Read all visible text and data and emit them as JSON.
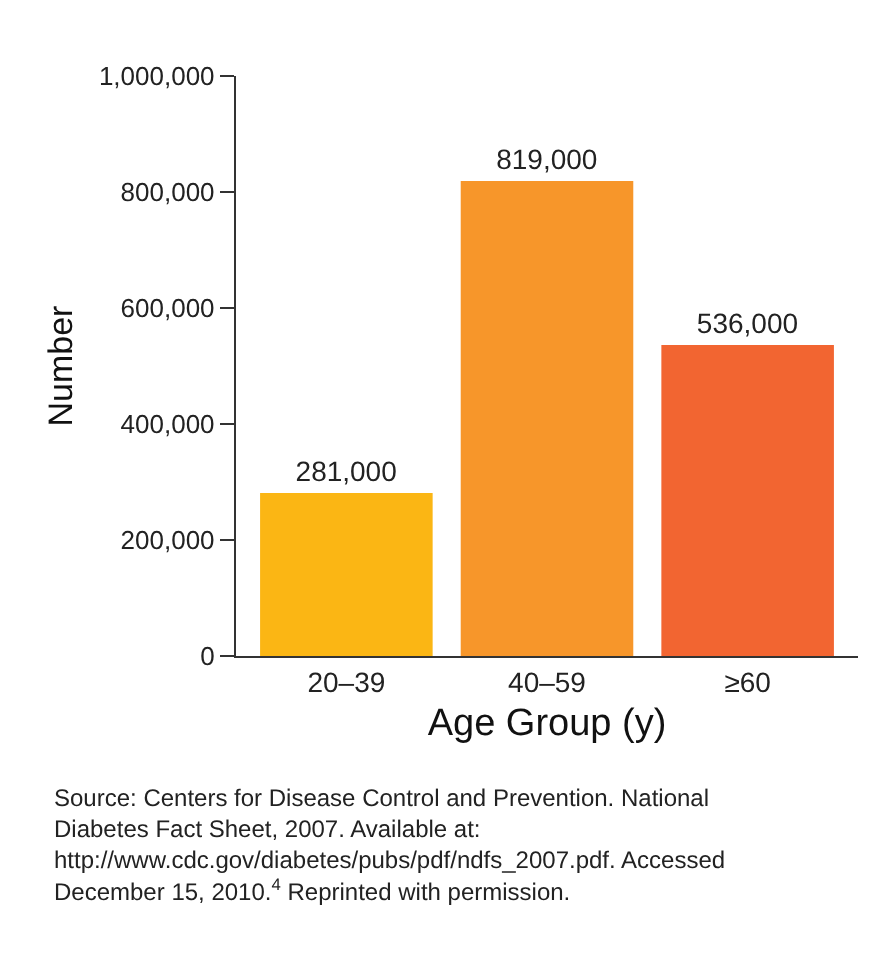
{
  "chart_data": {
    "type": "bar",
    "categories": [
      "20–39",
      "40–59",
      "≥60"
    ],
    "values": [
      281000,
      819000,
      536000
    ],
    "colors": [
      "#fbb614",
      "#f7962a",
      "#f26531"
    ],
    "xlabel": "Age Group (y)",
    "ylabel": "Number",
    "ylim": [
      0,
      1000000
    ],
    "yticks": [
      {
        "value": 0,
        "label": "0"
      },
      {
        "value": 200000,
        "label": "200,000"
      },
      {
        "value": 400000,
        "label": "400,000"
      },
      {
        "value": 600000,
        "label": "600,000"
      },
      {
        "value": 800000,
        "label": "800,000"
      },
      {
        "value": 1000000,
        "label": "1,000,000"
      }
    ],
    "value_labels": [
      "281,000",
      "819,000",
      "536,000"
    ],
    "legend": false,
    "annotations": [
      "Source: Centers for Disease Control and Prevention. National Diabetes Fact Sheet, 2007. Available at: http://www.cdc.gov/diabetes/pubs/pdf/ndfs_2007.pdf. Accessed December 15, 2010.$^{4}$ Reprinted with permission."
    ]
  }
}
